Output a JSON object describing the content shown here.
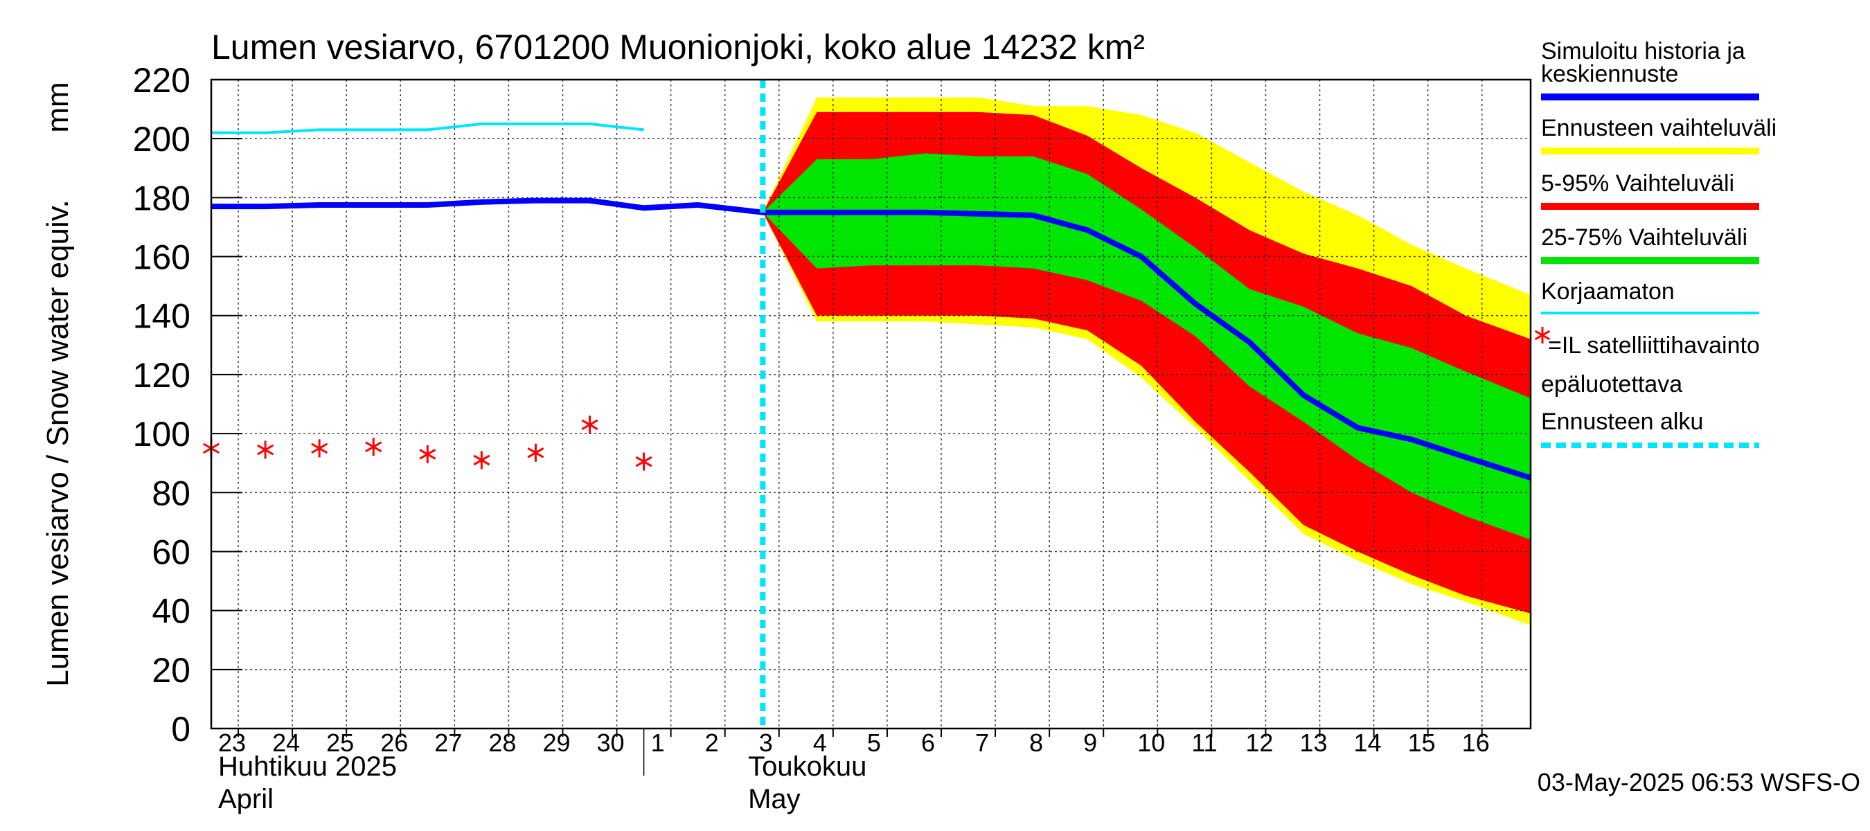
{
  "chart_data": {
    "type": "area",
    "title": "Lumen vesiarvo, 6701200 Muonionjoki, koko alue 14232 km²",
    "ylabel": "Lumen vesiarvo / Snow water equiv.",
    "yunit": "mm",
    "ylim": [
      0,
      220
    ],
    "yticks": [
      0,
      20,
      40,
      60,
      80,
      100,
      120,
      140,
      160,
      180,
      200,
      220
    ],
    "xlim": [
      22.5,
      46.9
    ],
    "day_ticks": [
      {
        "x": 23,
        "label": "23"
      },
      {
        "x": 24,
        "label": "24"
      },
      {
        "x": 25,
        "label": "25"
      },
      {
        "x": 26,
        "label": "26"
      },
      {
        "x": 27,
        "label": "27"
      },
      {
        "x": 28,
        "label": "28"
      },
      {
        "x": 29,
        "label": "29"
      },
      {
        "x": 30,
        "label": "30"
      },
      {
        "x": 31,
        "label": "1"
      },
      {
        "x": 32,
        "label": "2"
      },
      {
        "x": 33,
        "label": "3"
      },
      {
        "x": 34,
        "label": "4"
      },
      {
        "x": 35,
        "label": "5"
      },
      {
        "x": 36,
        "label": "6"
      },
      {
        "x": 37,
        "label": "7"
      },
      {
        "x": 38,
        "label": "8"
      },
      {
        "x": 39,
        "label": "9"
      },
      {
        "x": 40,
        "label": "10"
      },
      {
        "x": 41,
        "label": "11"
      },
      {
        "x": 42,
        "label": "12"
      },
      {
        "x": 43,
        "label": "13"
      },
      {
        "x": 44,
        "label": "14"
      },
      {
        "x": 45,
        "label": "15"
      },
      {
        "x": 46,
        "label": "16"
      }
    ],
    "month_labels": [
      {
        "x": 23,
        "fi": "Huhtikuu  2025",
        "en": "April"
      },
      {
        "x": 32.8,
        "fi": "Toukokuu",
        "en": "May"
      }
    ],
    "month_divider_x": 30.5,
    "forecast_start_x": 32.7,
    "series": [
      {
        "name": "Simuloitu historia ja keskiennuste",
        "color": "#0000ff",
        "x": [
          22.5,
          23.5,
          24.5,
          25.5,
          26.5,
          27.5,
          28.5,
          29.5,
          30.5,
          31.5,
          32.7,
          33.7,
          34.7,
          35.7,
          36.7,
          37.7,
          38.7,
          39.7,
          40.7,
          41.7,
          42.7,
          43.7,
          44.7,
          45.7,
          46.9
        ],
        "values": [
          177,
          177,
          177.5,
          177.5,
          177.5,
          178.5,
          179,
          179,
          176.5,
          177.5,
          175,
          175,
          175,
          175,
          174.5,
          174,
          169,
          160,
          144,
          131,
          113,
          102,
          98,
          92,
          85
        ]
      },
      {
        "name": "Korjaamaton",
        "color": "#00e5ff",
        "x": [
          22.5,
          23.5,
          24.5,
          25.5,
          26.5,
          27.5,
          28.5,
          29.5,
          30.5
        ],
        "values": [
          202,
          202,
          203,
          203,
          203,
          205,
          205,
          205,
          203
        ]
      },
      {
        "name": "Ennusteen vaihteluväli",
        "color": "#ffff00",
        "x": [
          32.7,
          33.7,
          34.7,
          35.7,
          36.7,
          37.7,
          38.7,
          39.7,
          40.7,
          41.7,
          42.7,
          43.7,
          44.7,
          45.7,
          46.9
        ],
        "upper": [
          175,
          214,
          214,
          214,
          214,
          211,
          211,
          208,
          202,
          192,
          182,
          174,
          164,
          156,
          147
        ],
        "lower": [
          175,
          138,
          138,
          138,
          137,
          136,
          132,
          119,
          102,
          84,
          66,
          57,
          49,
          43,
          35
        ]
      },
      {
        "name": "5-95% Vaihteluväli",
        "color": "#ff0000",
        "x": [
          32.7,
          33.7,
          34.7,
          35.7,
          36.7,
          37.7,
          38.7,
          39.7,
          40.7,
          41.7,
          42.7,
          43.7,
          44.7,
          45.7,
          46.9
        ],
        "upper": [
          175,
          209,
          209,
          209,
          209,
          208,
          201,
          190,
          180,
          169,
          161,
          156,
          150,
          140,
          132
        ],
        "lower": [
          175,
          140,
          140,
          140,
          140,
          139,
          135,
          123,
          104,
          87,
          69,
          60,
          52,
          45,
          39
        ]
      },
      {
        "name": "25-75% Vaihteluväli",
        "color": "#00e600",
        "x": [
          32.7,
          33.7,
          34.7,
          35.7,
          36.7,
          37.7,
          38.7,
          39.7,
          40.7,
          41.7,
          42.7,
          43.7,
          44.7,
          45.7,
          46.9
        ],
        "upper": [
          175,
          193,
          193,
          195,
          194,
          194,
          188,
          176,
          163,
          149,
          143,
          134,
          129,
          121,
          112
        ],
        "lower": [
          175,
          156,
          157,
          157,
          157,
          156,
          152,
          145,
          133,
          116,
          104,
          91,
          80,
          72,
          64
        ]
      },
      {
        "name": "=IL satelliittihavainto epäluotettava",
        "color": "#ff0000",
        "marker": "asterisk",
        "x": [
          22.5,
          23.5,
          24.5,
          25.5,
          26.5,
          27.5,
          28.5,
          29.5,
          30.5
        ],
        "values": [
          95,
          94.5,
          95,
          95.5,
          93,
          91,
          93.5,
          103,
          90.5
        ]
      }
    ],
    "legend": {
      "placement": "right",
      "items": [
        {
          "label": "Simuloitu historia ja",
          "label2": "keskiennuste",
          "color": "#0000ff",
          "style": "line"
        },
        {
          "label": "Ennusteen vaihteluväli",
          "color": "#ffff00",
          "style": "line"
        },
        {
          "label": "5-95% Vaihteluväli",
          "color": "#ff0000",
          "style": "line"
        },
        {
          "label": "25-75% Vaihteluväli",
          "color": "#00e600",
          "style": "line"
        },
        {
          "label": "Korjaamaton",
          "color": "#00e5ff",
          "style": "thin"
        },
        {
          "label": "=IL satelliittihavainto",
          "label2": "epäluotettava",
          "color": "#ff0000",
          "style": "asterisk"
        },
        {
          "label": "Ennusteen alku",
          "color": "#00e5ff",
          "style": "dashed"
        }
      ]
    },
    "footer": "03-May-2025 06:53 WSFS-O"
  }
}
